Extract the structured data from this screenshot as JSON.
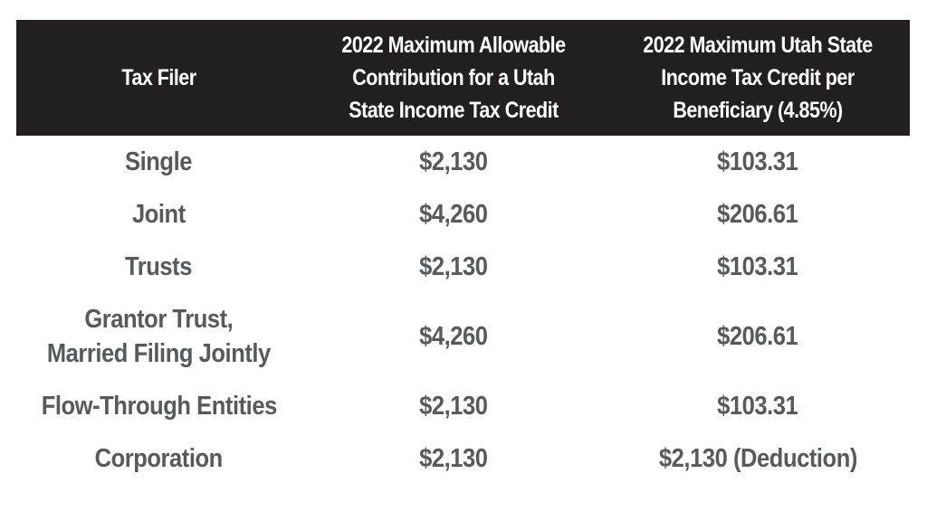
{
  "table": {
    "headers": [
      [
        "Tax Filer"
      ],
      [
        "2022 Maximum Allowable",
        "Contribution for a Utah",
        "State Income Tax Credit"
      ],
      [
        "2022 Maximum Utah State",
        "Income Tax Credit per",
        "Beneficiary (4.85%)"
      ]
    ],
    "rows": [
      {
        "filer": [
          "Single"
        ],
        "contribution": "$2,130",
        "credit": "$103.31"
      },
      {
        "filer": [
          "Joint"
        ],
        "contribution": "$4,260",
        "credit": "$206.61"
      },
      {
        "filer": [
          "Trusts"
        ],
        "contribution": "$2,130",
        "credit": "$103.31"
      },
      {
        "filer": [
          "Grantor Trust,",
          "Married Filing Jointly"
        ],
        "contribution": "$4,260",
        "credit": "$206.61"
      },
      {
        "filer": [
          "Flow-Through Entities"
        ],
        "contribution": "$2,130",
        "credit": "$103.31"
      },
      {
        "filer": [
          "Corporation"
        ],
        "contribution": "$2,130",
        "credit": "$2,130 (Deduction)"
      }
    ]
  },
  "colors": {
    "header_bg": "#231f20",
    "header_text": "#ffffff",
    "body_text": "#58595b"
  }
}
